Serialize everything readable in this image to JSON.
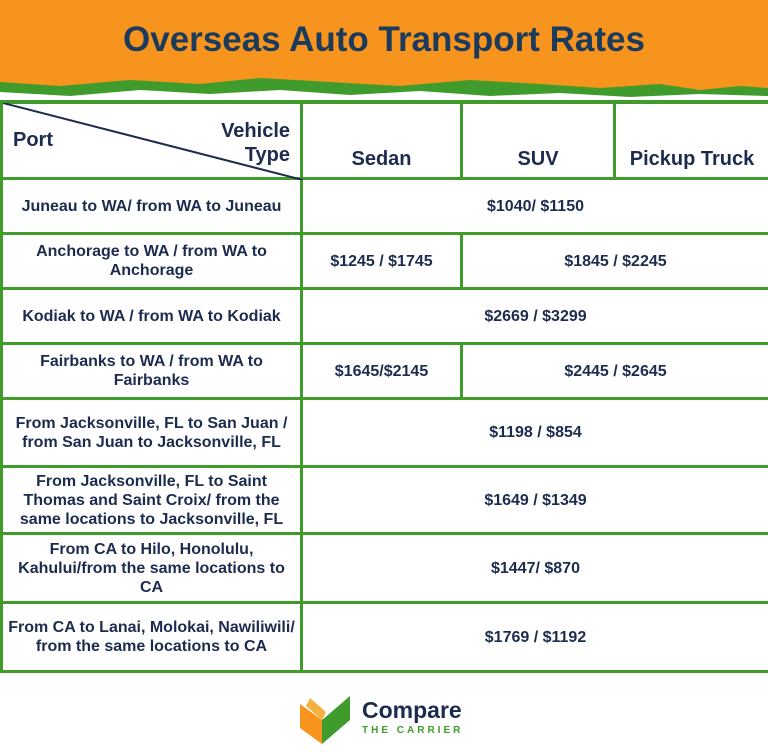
{
  "header": {
    "title": "Overseas Auto Transport Rates"
  },
  "table": {
    "columns": {
      "port": "Port",
      "vehicle_type": "Vehicle Type",
      "types": [
        "Sedan",
        "SUV",
        "Pickup Truck"
      ]
    },
    "rows": [
      {
        "port": "Juneau to WA/ from WA to Juneau",
        "rates": [
          "$1040/ $1150"
        ]
      },
      {
        "port": "Anchorage to WA / from WA to Anchorage",
        "rates": [
          "$1245 / $1745",
          "$1845 / $2245"
        ]
      },
      {
        "port": "Kodiak to WA / from WA to Kodiak",
        "rates": [
          "$2669 / $3299"
        ]
      },
      {
        "port": "Fairbanks to WA / from WA to Fairbanks",
        "rates": [
          "$1645/$2145",
          "$2445 / $2645"
        ]
      },
      {
        "port": "From Jacksonville, FL to San Juan / from San Juan to Jacksonville, FL",
        "rates": [
          "$1198 / $854"
        ]
      },
      {
        "port": "From Jacksonville, FL to Saint Thomas and Saint Croix/ from the same locations to Jacksonville, FL",
        "rates": [
          "$1649 / $1349"
        ]
      },
      {
        "port": "From CA to Hilo, Honolulu, Kahului/from the same locations to CA",
        "rates": [
          "$1447/ $870"
        ]
      },
      {
        "port": "From CA to Lanai, Molokai, Nawiliwili/ from the same locations to CA",
        "rates": [
          "$1769 / $1192"
        ]
      }
    ]
  },
  "footer": {
    "brand": "Compare",
    "tagline": "THE CARRIER"
  }
}
